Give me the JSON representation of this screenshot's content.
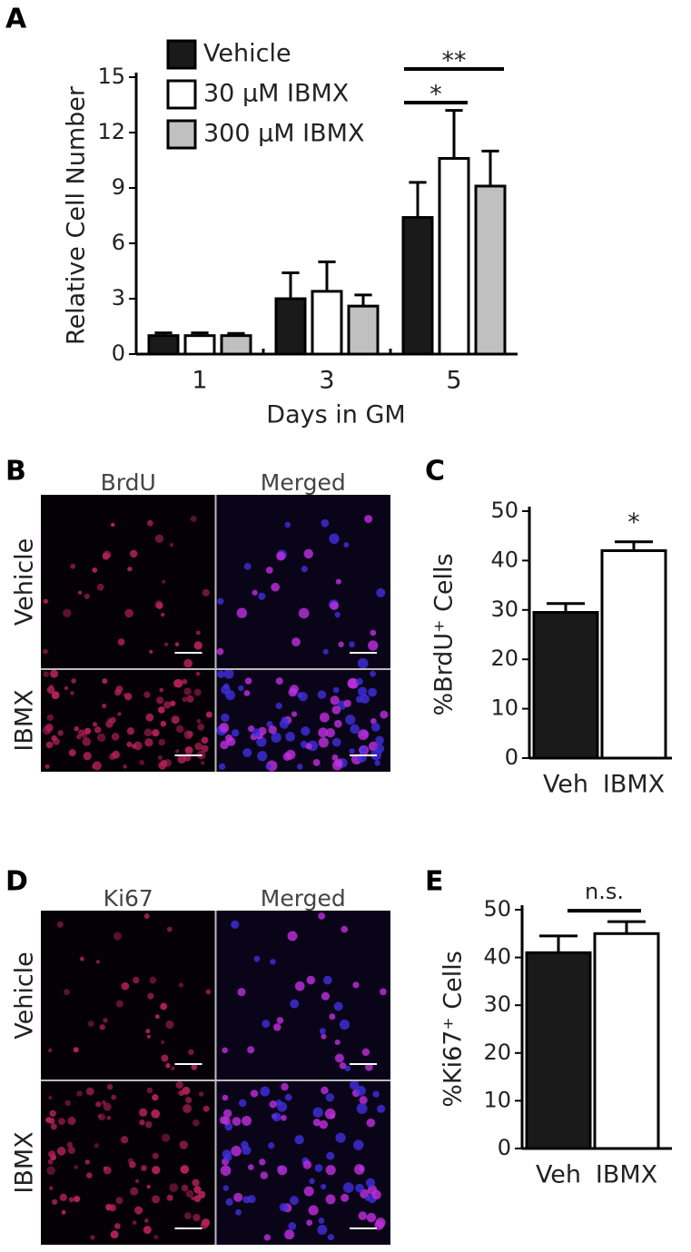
{
  "panels": {
    "a": "A",
    "b": "B",
    "c": "C",
    "d": "D",
    "e": "E"
  },
  "image_b": {
    "columns": [
      "BrdU",
      "Merged"
    ],
    "rows": [
      "Vehicle",
      "IBMX"
    ]
  },
  "image_d": {
    "columns": [
      "Ki67",
      "Merged"
    ],
    "rows": [
      "Vehicle",
      "IBMX"
    ]
  },
  "chart_data": [
    {
      "type": "bar",
      "x_label": "Days in GM",
      "y_label": "Relative Cell Number",
      "categories": [
        "1",
        "3",
        "5"
      ],
      "series": [
        {
          "name": "Vehicle",
          "color": "#1a1a1a",
          "values": [
            1.0,
            3.0,
            7.4
          ],
          "errors": [
            0.15,
            1.4,
            1.9
          ]
        },
        {
          "name": "30 µM IBMX",
          "color": "#ffffff",
          "values": [
            1.0,
            3.4,
            10.6
          ],
          "errors": [
            0.15,
            1.6,
            2.6
          ]
        },
        {
          "name": "300 µM IBMX",
          "color": "#c0c0c0",
          "values": [
            1.0,
            2.6,
            9.1
          ],
          "errors": [
            0.12,
            0.6,
            1.9
          ]
        }
      ],
      "ylim": [
        0,
        15
      ],
      "yticks": [
        0,
        3,
        6,
        9,
        12,
        15
      ],
      "legend": "top-left",
      "annotations": [
        "**",
        "*"
      ]
    },
    {
      "type": "bar",
      "y_label": "%BrdU⁺ Cells",
      "categories": [
        "Veh",
        "IBMX"
      ],
      "series": [
        {
          "colors": [
            "#1a1a1a",
            "#ffffff"
          ],
          "values": [
            29.5,
            42.0
          ],
          "errors": [
            1.8,
            1.8
          ]
        }
      ],
      "ylim": [
        0,
        50
      ],
      "yticks": [
        0,
        10,
        20,
        30,
        40,
        50
      ],
      "annotations": [
        "*"
      ]
    },
    {
      "type": "bar",
      "y_label": "%Ki67⁺ Cells",
      "categories": [
        "Veh",
        "IBMX"
      ],
      "series": [
        {
          "colors": [
            "#1a1a1a",
            "#ffffff"
          ],
          "values": [
            41.0,
            45.0
          ],
          "errors": [
            3.5,
            2.5
          ]
        }
      ],
      "ylim": [
        0,
        50
      ],
      "yticks": [
        0,
        10,
        20,
        30,
        40,
        50
      ],
      "annotations": [
        "n.s."
      ]
    }
  ]
}
